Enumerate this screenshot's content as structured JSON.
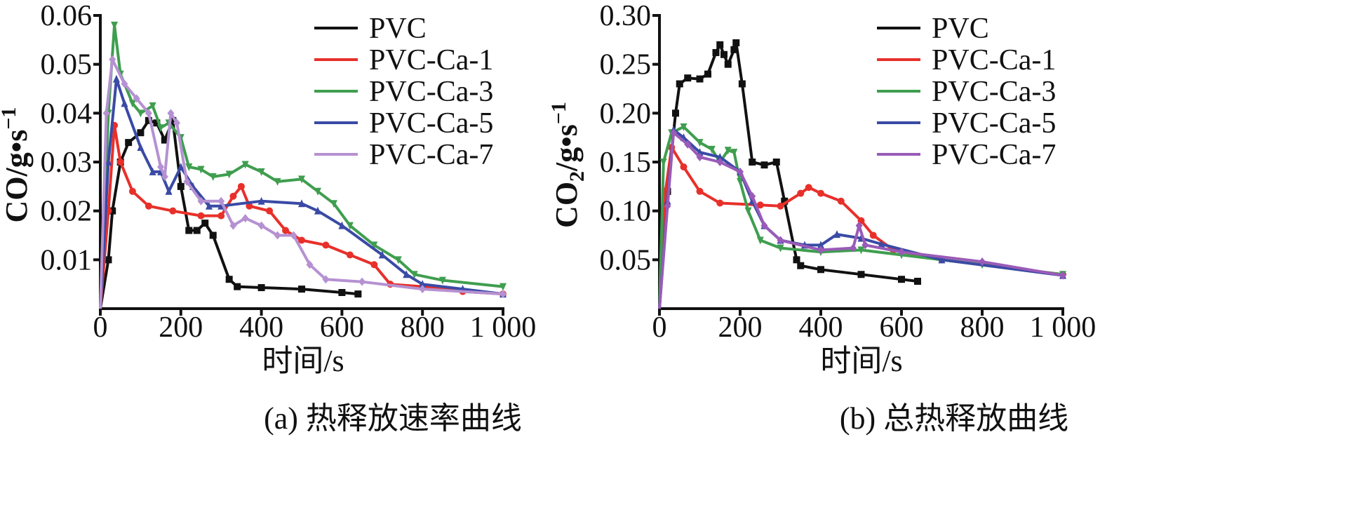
{
  "chart_data": [
    {
      "type": "line",
      "caption": "(a) 热释放速率曲线",
      "xlabel": "时间/s",
      "ylabel": "CO/g•s",
      "ylabel_sup": "−1",
      "xlim": [
        0,
        1000
      ],
      "ylim": [
        0,
        0.06
      ],
      "xticks": [
        0,
        200,
        400,
        600,
        800,
        1000
      ],
      "xtick_labels": [
        "0",
        "200",
        "400",
        "600",
        "800",
        "1 000"
      ],
      "yticks": [
        0.01,
        0.02,
        0.03,
        0.04,
        0.05,
        0.06
      ],
      "ytick_labels": [
        "0.01",
        "0.02",
        "0.03",
        "0.04",
        "0.05",
        "0.06"
      ],
      "grid": false,
      "legend": "top-right",
      "series": [
        {
          "name": "PVC",
          "color": "#111111",
          "marker": "square",
          "x": [
            0,
            20,
            30,
            50,
            70,
            100,
            120,
            140,
            160,
            180,
            200,
            220,
            240,
            260,
            280,
            320,
            340,
            400,
            500,
            600,
            640
          ],
          "y": [
            0,
            0.01,
            0.02,
            0.03,
            0.034,
            0.036,
            0.0385,
            0.038,
            0.0345,
            0.0385,
            0.025,
            0.016,
            0.016,
            0.0175,
            0.015,
            0.006,
            0.0045,
            0.0043,
            0.004,
            0.0033,
            0.003
          ]
        },
        {
          "name": "PVC-Ca-1",
          "color": "#e8302a",
          "marker": "circle",
          "x": [
            0,
            20,
            35,
            50,
            80,
            120,
            180,
            250,
            300,
            330,
            350,
            370,
            420,
            460,
            500,
            560,
            620,
            680,
            720,
            800,
            900,
            1000
          ],
          "y": [
            0,
            0.02,
            0.0375,
            0.03,
            0.024,
            0.021,
            0.02,
            0.019,
            0.019,
            0.023,
            0.025,
            0.021,
            0.02,
            0.016,
            0.014,
            0.013,
            0.011,
            0.009,
            0.005,
            0.0045,
            0.0035,
            0.003
          ]
        },
        {
          "name": "PVC-Ca-3",
          "color": "#3f9e4f",
          "marker": "triangle-down",
          "x": [
            0,
            20,
            35,
            50,
            80,
            100,
            130,
            150,
            170,
            200,
            220,
            250,
            280,
            320,
            360,
            400,
            440,
            500,
            540,
            580,
            620,
            680,
            740,
            780,
            850,
            1000
          ],
          "y": [
            0,
            0.04,
            0.058,
            0.048,
            0.042,
            0.04,
            0.0415,
            0.037,
            0.038,
            0.035,
            0.029,
            0.0285,
            0.027,
            0.0275,
            0.0295,
            0.028,
            0.026,
            0.0265,
            0.024,
            0.0215,
            0.017,
            0.013,
            0.01,
            0.007,
            0.0058,
            0.0045
          ]
        },
        {
          "name": "PVC-Ca-5",
          "color": "#3a4aa5",
          "marker": "triangle-up",
          "x": [
            0,
            20,
            40,
            60,
            100,
            130,
            150,
            170,
            200,
            230,
            270,
            300,
            400,
            500,
            540,
            600,
            700,
            760,
            800,
            900,
            1000
          ],
          "y": [
            0,
            0.03,
            0.047,
            0.042,
            0.033,
            0.028,
            0.028,
            0.024,
            0.029,
            0.025,
            0.021,
            0.021,
            0.022,
            0.0215,
            0.02,
            0.017,
            0.011,
            0.007,
            0.005,
            0.004,
            0.003
          ]
        },
        {
          "name": "PVC-Ca-7",
          "color": "#b591d2",
          "marker": "diamond",
          "x": [
            0,
            15,
            30,
            60,
            90,
            120,
            150,
            160,
            175,
            190,
            215,
            250,
            300,
            330,
            360,
            400,
            440,
            480,
            520,
            560,
            650,
            800,
            1000
          ],
          "y": [
            0,
            0.04,
            0.051,
            0.046,
            0.043,
            0.04,
            0.029,
            0.027,
            0.04,
            0.038,
            0.026,
            0.022,
            0.022,
            0.017,
            0.0185,
            0.017,
            0.015,
            0.015,
            0.009,
            0.006,
            0.0055,
            0.004,
            0.003
          ]
        }
      ]
    },
    {
      "type": "line",
      "caption": "(b) 总热释放曲线",
      "xlabel": "时间/s",
      "ylabel": "CO",
      "ylabel_sub": "2",
      "ylabel_rest": "/g•s",
      "ylabel_sup": "−1",
      "xlim": [
        0,
        1000
      ],
      "ylim": [
        0,
        0.3
      ],
      "xticks": [
        0,
        200,
        400,
        600,
        800,
        1000
      ],
      "xtick_labels": [
        "0",
        "200",
        "400",
        "600",
        "800",
        "1 000"
      ],
      "yticks": [
        0.05,
        0.1,
        0.15,
        0.2,
        0.25,
        0.3
      ],
      "ytick_labels": [
        "0.05",
        "0.10",
        "0.15",
        "0.20",
        "0.25",
        "0.30"
      ],
      "grid": false,
      "legend": "top-right",
      "series": [
        {
          "name": "PVC",
          "color": "#111111",
          "marker": "square",
          "x": [
            0,
            20,
            40,
            50,
            70,
            100,
            120,
            140,
            150,
            160,
            170,
            185,
            190,
            205,
            230,
            260,
            290,
            310,
            340,
            350,
            400,
            500,
            600,
            640
          ],
          "y": [
            0,
            0.12,
            0.2,
            0.23,
            0.236,
            0.235,
            0.24,
            0.262,
            0.27,
            0.26,
            0.25,
            0.265,
            0.272,
            0.23,
            0.15,
            0.147,
            0.15,
            0.11,
            0.05,
            0.044,
            0.04,
            0.035,
            0.03,
            0.028
          ]
        },
        {
          "name": "PVC-Ca-1",
          "color": "#e8302a",
          "marker": "circle",
          "x": [
            0,
            15,
            30,
            60,
            100,
            150,
            250,
            300,
            350,
            370,
            400,
            450,
            500,
            530,
            580,
            700,
            1000
          ],
          "y": [
            0,
            0.12,
            0.165,
            0.145,
            0.12,
            0.108,
            0.106,
            0.105,
            0.118,
            0.124,
            0.118,
            0.11,
            0.09,
            0.075,
            0.06,
            0.05,
            0.035
          ]
        },
        {
          "name": "PVC-Ca-3",
          "color": "#3f9e4f",
          "marker": "triangle-down",
          "x": [
            0,
            10,
            30,
            60,
            100,
            130,
            150,
            170,
            185,
            200,
            220,
            250,
            300,
            400,
            500,
            600,
            800,
            1000
          ],
          "y": [
            0,
            0.15,
            0.18,
            0.186,
            0.17,
            0.163,
            0.15,
            0.162,
            0.16,
            0.13,
            0.1,
            0.07,
            0.062,
            0.058,
            0.06,
            0.055,
            0.045,
            0.035
          ]
        },
        {
          "name": "PVC-Ca-5",
          "color": "#3a4aa5",
          "marker": "triangle-up",
          "x": [
            0,
            20,
            35,
            60,
            100,
            150,
            200,
            230,
            260,
            300,
            360,
            400,
            440,
            500,
            550,
            700,
            1000
          ],
          "y": [
            0,
            0.11,
            0.183,
            0.175,
            0.16,
            0.155,
            0.14,
            0.11,
            0.085,
            0.07,
            0.065,
            0.065,
            0.076,
            0.072,
            0.066,
            0.05,
            0.034
          ]
        },
        {
          "name": "PVC-Ca-7",
          "color": "#9a5bb8",
          "marker": "diamond",
          "x": [
            0,
            20,
            35,
            70,
            100,
            150,
            200,
            230,
            260,
            300,
            400,
            480,
            495,
            510,
            600,
            800,
            1000
          ],
          "y": [
            0,
            0.105,
            0.18,
            0.168,
            0.155,
            0.15,
            0.14,
            0.115,
            0.085,
            0.07,
            0.06,
            0.062,
            0.085,
            0.065,
            0.058,
            0.048,
            0.034
          ]
        }
      ]
    }
  ]
}
